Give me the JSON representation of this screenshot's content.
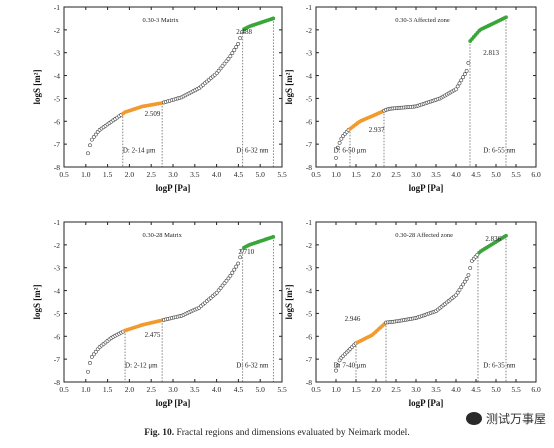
{
  "caption": {
    "label": "Fig. 10.",
    "text": "Fractal regions and dimensions evaluated by Neimark model."
  },
  "watermark": {
    "text": "测试万事屋",
    "icon": "wechat-icon"
  },
  "colors": {
    "orange": "#f39a2e",
    "green": "#3aa53a",
    "grey": "#444444"
  },
  "chart_data": [
    {
      "type": "scatter",
      "title": "0.30-3 Matrix",
      "xlabel": "logP [Pa]",
      "ylabel": "logS [m²]",
      "xlim": [
        0.5,
        5.5
      ],
      "ylim": [
        -8,
        -1
      ],
      "xticks": [
        "0.5",
        "1.0",
        "1.5",
        "2.0",
        "2.5",
        "3.0",
        "3.5",
        "4.0",
        "4.5",
        "5.0",
        "5.5"
      ],
      "yticks": [
        "-8",
        "-7",
        "-6",
        "-5",
        "-4",
        "-3",
        "-2",
        "-1"
      ],
      "knots": [
        [
          1.05,
          -7.4
        ],
        [
          1.12,
          -6.85
        ],
        [
          1.3,
          -6.4
        ],
        [
          1.6,
          -6.0
        ],
        [
          1.9,
          -5.6
        ],
        [
          2.3,
          -5.35
        ],
        [
          2.75,
          -5.2
        ],
        [
          3.2,
          -4.95
        ],
        [
          3.6,
          -4.55
        ],
        [
          4.0,
          -3.9
        ],
        [
          4.3,
          -3.2
        ],
        [
          4.5,
          -2.6
        ],
        [
          4.6,
          -2.0
        ],
        [
          4.75,
          -1.85
        ],
        [
          5.3,
          -1.5
        ]
      ],
      "regions": [
        {
          "x0": 1.85,
          "x1": 2.75,
          "color": "orange",
          "dimension": "2.509",
          "label": "D: 2-14 μm"
        },
        {
          "x0": 4.6,
          "x1": 5.3,
          "color": "green",
          "dimension": "2.488",
          "label": "D: 6-32 nm"
        }
      ]
    },
    {
      "type": "scatter",
      "title": "0.30-3 Affected zone",
      "xlabel": "logP [Pa]",
      "ylabel": "logS [m²]",
      "xlim": [
        0.5,
        6.0
      ],
      "ylim": [
        -8,
        -1
      ],
      "xticks": [
        "0.5",
        "1.0",
        "1.5",
        "2.0",
        "2.5",
        "3.0",
        "3.5",
        "4.0",
        "4.5",
        "5.0",
        "5.5",
        "6.0"
      ],
      "yticks": [
        "-8",
        "-7",
        "-6",
        "-5",
        "-4",
        "-3",
        "-2",
        "-1"
      ],
      "knots": [
        [
          1.0,
          -7.6
        ],
        [
          1.05,
          -7.1
        ],
        [
          1.15,
          -6.7
        ],
        [
          1.3,
          -6.4
        ],
        [
          1.6,
          -6.0
        ],
        [
          2.0,
          -5.7
        ],
        [
          2.25,
          -5.5
        ],
        [
          2.35,
          -5.45
        ],
        [
          3.0,
          -5.35
        ],
        [
          3.6,
          -5.0
        ],
        [
          4.0,
          -4.6
        ],
        [
          4.3,
          -3.7
        ],
        [
          4.35,
          -2.5
        ],
        [
          4.6,
          -2.0
        ],
        [
          5.25,
          -1.45
        ]
      ],
      "regions": [
        {
          "x0": 1.35,
          "x1": 2.2,
          "color": "orange",
          "dimension": "2.937",
          "label": "D: 6-50 μm"
        },
        {
          "x0": 4.35,
          "x1": 5.25,
          "color": "green",
          "dimension": "2.813",
          "label": "D: 6-55 nm"
        }
      ]
    },
    {
      "type": "scatter",
      "title": "0.30-28 Matrix",
      "xlabel": "logP [Pa]",
      "ylabel": "logS [m²]",
      "xlim": [
        0.5,
        5.5
      ],
      "ylim": [
        -8,
        -1
      ],
      "xticks": [
        "0.5",
        "1.0",
        "1.5",
        "2.0",
        "2.5",
        "3.0",
        "3.5",
        "4.0",
        "4.5",
        "5.0",
        "5.5"
      ],
      "yticks": [
        "-8",
        "-7",
        "-6",
        "-5",
        "-4",
        "-3",
        "-2",
        "-1"
      ],
      "knots": [
        [
          1.05,
          -7.55
        ],
        [
          1.12,
          -6.95
        ],
        [
          1.3,
          -6.5
        ],
        [
          1.6,
          -6.05
        ],
        [
          1.9,
          -5.75
        ],
        [
          2.3,
          -5.5
        ],
        [
          2.75,
          -5.3
        ],
        [
          3.2,
          -5.1
        ],
        [
          3.6,
          -4.75
        ],
        [
          4.0,
          -4.1
        ],
        [
          4.3,
          -3.4
        ],
        [
          4.5,
          -2.8
        ],
        [
          4.6,
          -2.15
        ],
        [
          4.75,
          -2.0
        ],
        [
          5.3,
          -1.65
        ]
      ],
      "regions": [
        {
          "x0": 1.9,
          "x1": 2.75,
          "color": "orange",
          "dimension": "2.475",
          "label": "D: 2-12 μm"
        },
        {
          "x0": 4.6,
          "x1": 5.3,
          "color": "green",
          "dimension": "2.710",
          "label": "D: 6-32 nm"
        }
      ]
    },
    {
      "type": "scatter",
      "title": "0.30-28 Affected zone",
      "xlabel": "logP [Pa]",
      "ylabel": "logS [m²]",
      "xlim": [
        0.5,
        6.0
      ],
      "ylim": [
        -8,
        -1
      ],
      "xticks": [
        "0.5",
        "1.0",
        "1.5",
        "2.0",
        "2.5",
        "3.0",
        "3.5",
        "4.0",
        "4.5",
        "5.0",
        "5.5",
        "6.0"
      ],
      "yticks": [
        "-8",
        "-7",
        "-6",
        "-5",
        "-4",
        "-3",
        "-2",
        "-1"
      ],
      "knots": [
        [
          1.0,
          -7.5
        ],
        [
          1.1,
          -7.0
        ],
        [
          1.3,
          -6.65
        ],
        [
          1.5,
          -6.3
        ],
        [
          1.9,
          -5.95
        ],
        [
          2.25,
          -5.4
        ],
        [
          2.5,
          -5.35
        ],
        [
          3.0,
          -5.2
        ],
        [
          3.5,
          -4.9
        ],
        [
          4.0,
          -4.2
        ],
        [
          4.3,
          -3.4
        ],
        [
          4.4,
          -2.7
        ],
        [
          4.6,
          -2.3
        ],
        [
          5.25,
          -1.6
        ]
      ],
      "regions": [
        {
          "x0": 1.5,
          "x1": 2.25,
          "color": "orange",
          "dimension": "2.946",
          "label": "D: 7-40 μm"
        },
        {
          "x0": 4.55,
          "x1": 5.25,
          "color": "green",
          "dimension": "2.836",
          "label": "D: 6-35 nm"
        }
      ]
    }
  ]
}
